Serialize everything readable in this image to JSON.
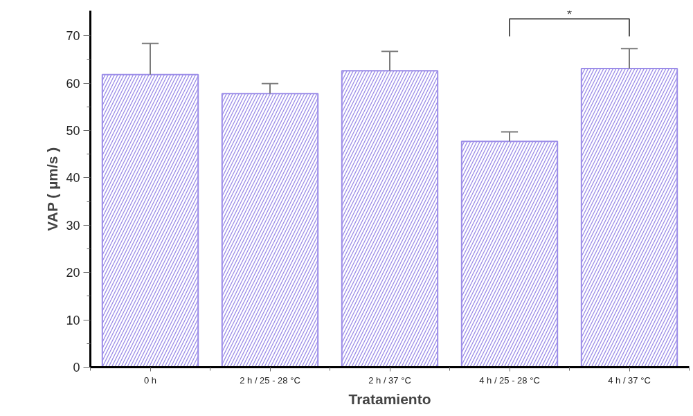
{
  "chart_data": {
    "type": "bar",
    "xlabel": "Tratamiento",
    "ylabel": "VAP ( µm/s )",
    "categories": [
      "0 h",
      "2 h / 25 - 28 °C",
      "2 h / 37 °C",
      "4 h / 25 - 28 °C",
      "4 h / 37 °C"
    ],
    "values": [
      61.8,
      57.8,
      62.6,
      47.7,
      63.1
    ],
    "errors": [
      [
        61.8,
        68.4
      ],
      [
        57.8,
        59.9
      ],
      [
        62.6,
        66.7
      ],
      [
        47.7,
        49.7
      ],
      [
        63.1,
        67.3
      ]
    ],
    "color": "#9b8ce8",
    "ylim": [
      0,
      75.3
    ],
    "yticks": [
      0,
      {
        "value": 5,
        "label": null
      },
      10,
      {
        "value": 15,
        "label": null
      },
      20,
      {
        "value": 25,
        "label": null
      },
      30,
      {
        "value": 35,
        "label": null
      },
      40,
      {
        "value": 45,
        "label": null
      },
      50,
      {
        "value": 55,
        "label": null
      },
      60,
      {
        "value": 65,
        "label": null
      },
      70
    ],
    "annotations": [
      "*"
    ],
    "grid": false
  }
}
